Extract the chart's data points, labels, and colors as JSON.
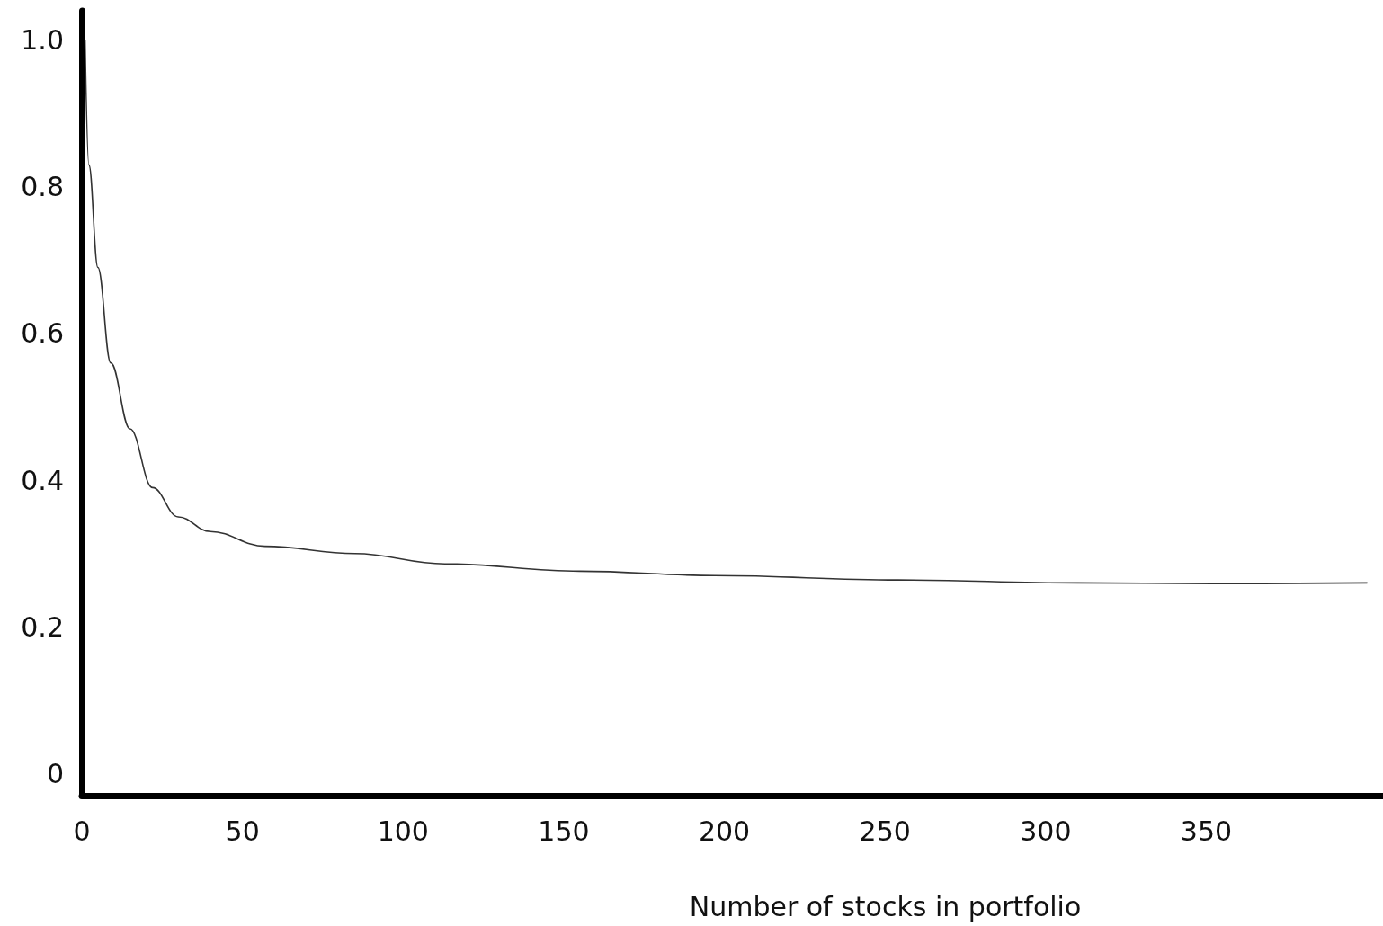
{
  "chart_data": {
    "type": "line",
    "xlabel": "Number of stocks in portfolio",
    "x": [
      1,
      2.2,
      5,
      9,
      15,
      22,
      30,
      40,
      57,
      85,
      113,
      155,
      197,
      254,
      310,
      352,
      400
    ],
    "values": [
      1.0,
      0.83,
      0.69,
      0.56,
      0.47,
      0.39,
      0.35,
      0.33,
      0.31,
      0.3,
      0.286,
      0.276,
      0.27,
      0.264,
      0.26,
      0.259,
      0.26
    ],
    "color": "#333333",
    "xlim": [
      0,
      405
    ],
    "xticks": [
      0,
      50,
      100,
      150,
      200,
      250,
      300,
      350
    ],
    "ylim": [
      -0.03,
      1.04
    ],
    "yticks": [
      0,
      0.2,
      0.4,
      0.6,
      0.8,
      {
        "value": 1.0,
        "label": "1.0"
      }
    ],
    "grid": false,
    "marker": "none",
    "line_style": "solid"
  }
}
